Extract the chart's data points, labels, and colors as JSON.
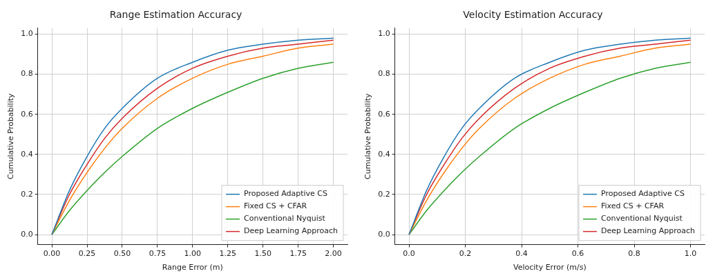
{
  "chart_data": [
    {
      "type": "line",
      "title": "Range Estimation Accuracy",
      "xlabel": "Range Error (m)",
      "ylabel": "Cumulative Probability",
      "x": [
        0,
        0.125,
        0.25,
        0.375,
        0.5,
        0.75,
        1.0,
        1.25,
        1.5,
        1.75,
        2.0
      ],
      "series": [
        {
          "name": "Proposed Adaptive CS",
          "color": "#1f77b4",
          "values": [
            0,
            0.22,
            0.39,
            0.53,
            0.63,
            0.78,
            0.86,
            0.92,
            0.95,
            0.97,
            0.98
          ]
        },
        {
          "name": "Fixed CS + CFAR",
          "color": "#ff7f0e",
          "values": [
            0,
            0.17,
            0.31,
            0.43,
            0.53,
            0.68,
            0.78,
            0.85,
            0.89,
            0.93,
            0.95
          ]
        },
        {
          "name": "Conventional Nyquist",
          "color": "#2ca02c",
          "values": [
            0,
            0.12,
            0.22,
            0.31,
            0.39,
            0.53,
            0.63,
            0.71,
            0.78,
            0.83,
            0.86
          ]
        },
        {
          "name": "Deep Learning Approach",
          "color": "#d62728",
          "values": [
            0,
            0.2,
            0.35,
            0.48,
            0.58,
            0.73,
            0.83,
            0.89,
            0.93,
            0.95,
            0.97
          ]
        }
      ],
      "xlim": [
        -0.1,
        2.1
      ],
      "xticks": [
        {
          "value": 0,
          "label": "0.00"
        },
        {
          "value": 0.25,
          "label": "0.25"
        },
        {
          "value": 0.5,
          "label": "0.50"
        },
        {
          "value": 0.75,
          "label": "0.75"
        },
        {
          "value": 1,
          "label": "1.00"
        },
        {
          "value": 1.25,
          "label": "1.25"
        },
        {
          "value": 1.5,
          "label": "1.50"
        },
        {
          "value": 1.75,
          "label": "1.75"
        },
        {
          "value": 2,
          "label": "2.00"
        }
      ],
      "ylim": [
        -0.05,
        1.03
      ],
      "yticks": [
        {
          "value": 0,
          "label": "0.0"
        },
        {
          "value": 0.2,
          "label": "0.2"
        },
        {
          "value": 0.4,
          "label": "0.4"
        },
        {
          "value": 0.6,
          "label": "0.6"
        },
        {
          "value": 0.8,
          "label": "0.8"
        },
        {
          "value": 1,
          "label": "1.0"
        }
      ],
      "grid": true,
      "legend": "bottom right"
    },
    {
      "type": "line",
      "title": "Velocity Estimation Accuracy",
      "xlabel": "Velocity Error (m/s)",
      "ylabel": "Cumulative Probability",
      "x": [
        0,
        0.0625,
        0.125,
        0.1875,
        0.25,
        0.375,
        0.5,
        0.625,
        0.75,
        0.875,
        1.0
      ],
      "series": [
        {
          "name": "Proposed Adaptive CS",
          "color": "#1f77b4",
          "values": [
            0,
            0.22,
            0.39,
            0.53,
            0.63,
            0.78,
            0.86,
            0.92,
            0.95,
            0.97,
            0.98
          ]
        },
        {
          "name": "Fixed CS + CFAR",
          "color": "#ff7f0e",
          "values": [
            0,
            0.17,
            0.31,
            0.43,
            0.53,
            0.68,
            0.78,
            0.85,
            0.89,
            0.93,
            0.95
          ]
        },
        {
          "name": "Conventional Nyquist",
          "color": "#2ca02c",
          "values": [
            0,
            0.12,
            0.22,
            0.31,
            0.39,
            0.53,
            0.63,
            0.71,
            0.78,
            0.83,
            0.86
          ]
        },
        {
          "name": "Deep Learning Approach",
          "color": "#d62728",
          "values": [
            0,
            0.2,
            0.35,
            0.48,
            0.58,
            0.73,
            0.83,
            0.89,
            0.93,
            0.95,
            0.97
          ]
        }
      ],
      "xlim": [
        -0.05,
        1.05
      ],
      "xticks": [
        {
          "value": 0,
          "label": "0.0"
        },
        {
          "value": 0.2,
          "label": "0.2"
        },
        {
          "value": 0.4,
          "label": "0.4"
        },
        {
          "value": 0.6,
          "label": "0.6"
        },
        {
          "value": 0.8,
          "label": "0.8"
        },
        {
          "value": 1,
          "label": "1.0"
        }
      ],
      "ylim": [
        -0.05,
        1.03
      ],
      "yticks": [
        {
          "value": 0,
          "label": "0.0"
        },
        {
          "value": 0.2,
          "label": "0.2"
        },
        {
          "value": 0.4,
          "label": "0.4"
        },
        {
          "value": 0.6,
          "label": "0.6"
        },
        {
          "value": 0.8,
          "label": "0.8"
        },
        {
          "value": 1,
          "label": "1.0"
        }
      ],
      "grid": true,
      "legend": "bottom right"
    }
  ]
}
